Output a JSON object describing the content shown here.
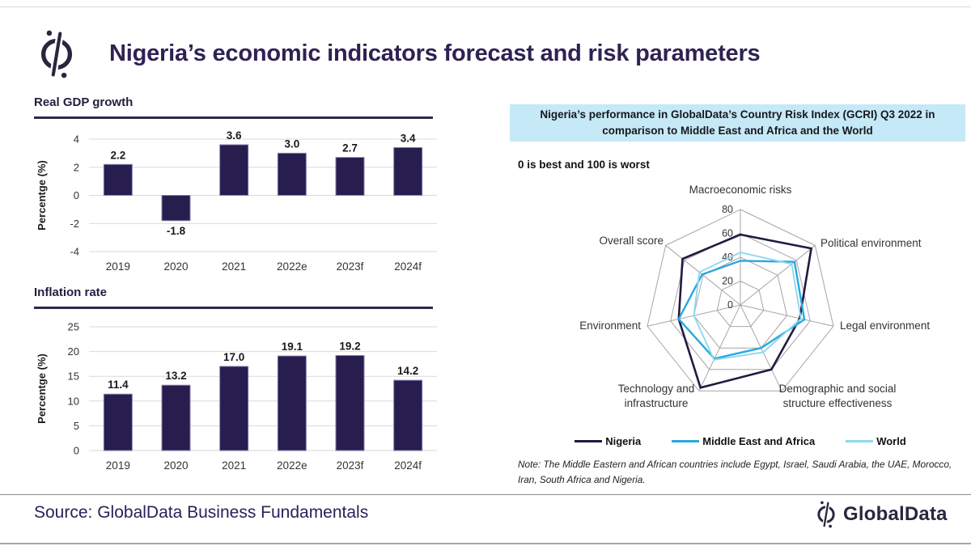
{
  "header": {
    "title": "Nigeria’s economic indicators forecast and risk parameters"
  },
  "footer": {
    "source": "Source: GlobalData Business Fundamentals",
    "brand": "GlobalData"
  },
  "colors": {
    "bar_fill": "#271d4e",
    "bar_edge": "#8881ad",
    "grid_gray": "#d9d9d9",
    "radar_grid": "#a6a6a6",
    "title_purple": "#2e2253",
    "heading_box_bg": "#c5e9f6",
    "nigeria_line": "#201a42",
    "mea_line": "#29a8e0",
    "world_line": "#8ed8f0"
  },
  "chart_data": [
    {
      "id": "gdp",
      "type": "bar",
      "title": "Real GDP growth",
      "ylabel": "Percentge (%)",
      "categories": [
        "2019",
        "2020",
        "2021",
        "2022e",
        "2023f",
        "2024f"
      ],
      "values": [
        2.2,
        -1.8,
        3.6,
        3.0,
        2.7,
        3.4
      ],
      "labels": [
        "2.2",
        "-1.8",
        "3.6",
        "3.0",
        "2.7",
        "3.4"
      ],
      "ylim": [
        -4,
        4
      ],
      "yticks": [
        4,
        2,
        0,
        -2,
        -4
      ]
    },
    {
      "id": "inflation",
      "type": "bar",
      "title": "Inflation rate",
      "ylabel": "Percentge (%)",
      "categories": [
        "2019",
        "2020",
        "2021",
        "2022e",
        "2023f",
        "2024f"
      ],
      "values": [
        11.4,
        13.2,
        17.0,
        19.1,
        19.2,
        14.2
      ],
      "labels": [
        "11.4",
        "13.2",
        "17.0",
        "19.1",
        "19.2",
        "14.2"
      ],
      "ylim": [
        0,
        25
      ],
      "yticks": [
        25,
        20,
        15,
        10,
        5,
        0
      ]
    },
    {
      "id": "gcri-radar",
      "type": "radar",
      "title": "Nigeria’s performance in GlobalData’s Country Risk Index (GCRI) Q3 2022 in comparison to Middle East and Africa and the World",
      "subtitle": "0 is best and 100 is worst",
      "axes": [
        "Macroeconomic risks",
        "Political environment",
        "Legal environment",
        "Demographic and social structure effectiveness",
        "Technology and infrastructure",
        "Environment",
        "Overall score"
      ],
      "axes_lines": [
        [
          "Macroeconomic risks"
        ],
        [
          "Political environment"
        ],
        [
          "Legal environment"
        ],
        [
          "Demographic and social",
          "structure effectiveness"
        ],
        [
          "Technology and",
          "infrastructure"
        ],
        [
          "Environment"
        ],
        [
          "Overall score"
        ]
      ],
      "ticks": [
        0,
        20,
        40,
        60,
        80
      ],
      "rmax": 80,
      "series": [
        {
          "name": "Nigeria",
          "color": "#201a42",
          "values": [
            59,
            76,
            51,
            60,
            77,
            53,
            62
          ]
        },
        {
          "name": "Middle East and Africa",
          "color": "#29a8e0",
          "values": [
            37,
            58,
            55,
            40,
            50,
            53,
            41
          ]
        },
        {
          "name": "World",
          "color": "#8ed8f0",
          "values": [
            44,
            55,
            52,
            44,
            51,
            40,
            44
          ]
        }
      ],
      "note": "Note: The Middle Eastern and African countries include Egypt,  Israel, Saudi Arabia, the UAE, Morocco, Iran, South Africa and Nigeria."
    }
  ]
}
